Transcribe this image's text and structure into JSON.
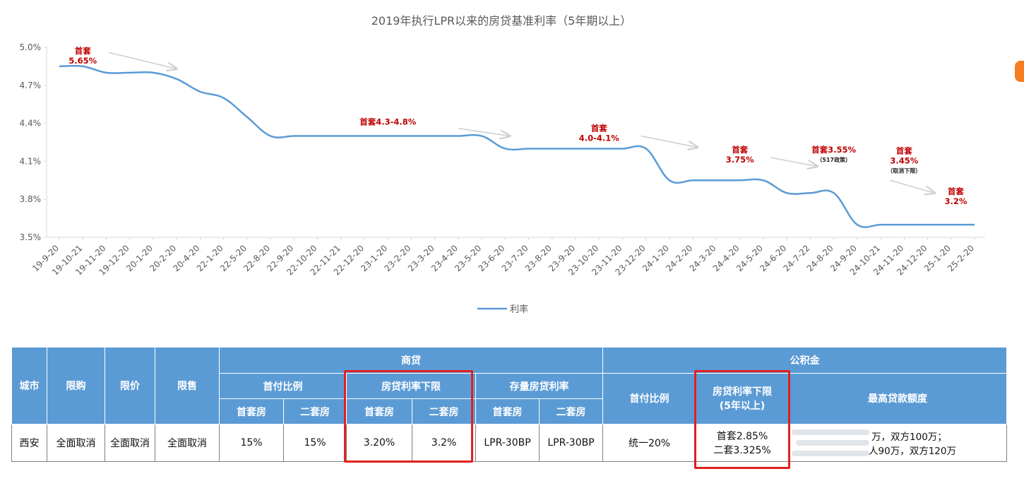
{
  "chart_data": {
    "type": "line",
    "title": "2019年执行LPR以来的房贷基准利率（5年期以上）",
    "x": [
      "19-9-20",
      "19-10-21",
      "19-11-20",
      "19-12-20",
      "20-1-20",
      "20-2-20",
      "20-4-20",
      "22-1-20",
      "22-5-20",
      "22-8-20",
      "22-9-20",
      "22-10-20",
      "22-11-21",
      "22-12-20",
      "23-1-20",
      "23-2-20",
      "23-3-20",
      "23-4-20",
      "23-5-20",
      "23-6-20",
      "23-7-20",
      "23-8-20",
      "23-9-20",
      "23-10-20",
      "23-11-20",
      "23-12-20",
      "24-1-20",
      "24-2-20",
      "24-3-20",
      "24-4-20",
      "24-5-20",
      "24-6-20",
      "24-7-22",
      "24-8-20",
      "24-9-20",
      "24-10-21",
      "24-11-20",
      "24-12-20",
      "25-1-20",
      "25-2-20"
    ],
    "series": [
      {
        "name": "利率",
        "color": "#5b9bd5",
        "values": [
          4.85,
          4.85,
          4.8,
          4.8,
          4.8,
          4.75,
          4.65,
          4.6,
          4.45,
          4.3,
          4.3,
          4.3,
          4.3,
          4.3,
          4.3,
          4.3,
          4.3,
          4.3,
          4.3,
          4.2,
          4.2,
          4.2,
          4.2,
          4.2,
          4.2,
          4.2,
          3.95,
          3.95,
          3.95,
          3.95,
          3.95,
          3.85,
          3.85,
          3.85,
          3.6,
          3.6,
          3.6,
          3.6,
          3.6,
          3.6
        ]
      }
    ],
    "y_ticks": [
      "5.0%",
      "4.7%",
      "4.4%",
      "4.1%",
      "3.8%",
      "3.5%"
    ],
    "ylim": [
      3.5,
      5.0
    ],
    "grid": false,
    "legend": "bottom-center",
    "annotations": [
      {
        "lines": [
          "首套",
          "5.65%"
        ],
        "sub": "",
        "x_index": 1.0,
        "y": 4.95
      },
      {
        "lines": [
          "首套4.3-4.8%"
        ],
        "sub": "",
        "x_index": 14.0,
        "y": 4.39
      },
      {
        "lines": [
          "首套",
          "4.0-4.1%"
        ],
        "sub": "",
        "x_index": 23.0,
        "y": 4.34
      },
      {
        "lines": [
          "首套",
          "3.75%"
        ],
        "sub": "",
        "x_index": 29.0,
        "y": 4.17
      },
      {
        "lines": [
          "首套3.55%"
        ],
        "sub": "（517政策）",
        "x_index": 33.0,
        "y": 4.17
      },
      {
        "lines": [
          "首套",
          "3.45%"
        ],
        "sub": "（取消下限）",
        "x_index": 36.0,
        "y": 4.16
      },
      {
        "lines": [
          "首套",
          "3.2%"
        ],
        "sub": "",
        "x_index": 38.2,
        "y": 3.84
      }
    ],
    "arrows": [
      {
        "from": [
          2.1,
          4.96
        ],
        "to": [
          5.0,
          4.83
        ]
      },
      {
        "from": [
          17.0,
          4.36
        ],
        "to": [
          19.2,
          4.3
        ]
      },
      {
        "from": [
          24.8,
          4.3
        ],
        "to": [
          27.2,
          4.21
        ]
      },
      {
        "from": [
          30.3,
          4.13
        ],
        "to": [
          32.3,
          4.06
        ]
      },
      {
        "from": [
          35.4,
          3.95
        ],
        "to": [
          37.3,
          3.85
        ]
      }
    ]
  },
  "table": {
    "headers": {
      "city": "城市",
      "purchase_limit": "限购",
      "price_limit": "限价",
      "sale_limit": "限售",
      "commercial": "商贷",
      "provident": "公积金",
      "down_payment": "首付比例",
      "rate_floor": "房贷利率下限",
      "existing_rate": "存量房贷利率",
      "first_home": "首套房",
      "second_home": "二套房",
      "pf_down_payment": "首付比例",
      "pf_rate_floor_line1": "房贷利率下限",
      "pf_rate_floor_line2": "(5年以上)",
      "max_loan": "最高贷款额度"
    },
    "row": {
      "city": "西安",
      "purchase_limit": "全面取消",
      "price_limit": "全面取消",
      "sale_limit": "全面取消",
      "down_first": "15%",
      "down_second": "15%",
      "floor_first": "3.20%",
      "floor_second": "3.2%",
      "existing_first": "LPR-30BP",
      "existing_second": "LPR-30BP",
      "pf_down": "统一20%",
      "pf_rate_line1": "首套2.85%",
      "pf_rate_line2": "二套3.325%",
      "max_loan_line1": "万，双方100万；",
      "max_loan_line2": "人90万，双方120万"
    }
  },
  "colors": {
    "header_bg": "#5b9bd5",
    "highlight": "#e02020",
    "annotation": "#c00000",
    "side_icon": "#f57c1f"
  }
}
